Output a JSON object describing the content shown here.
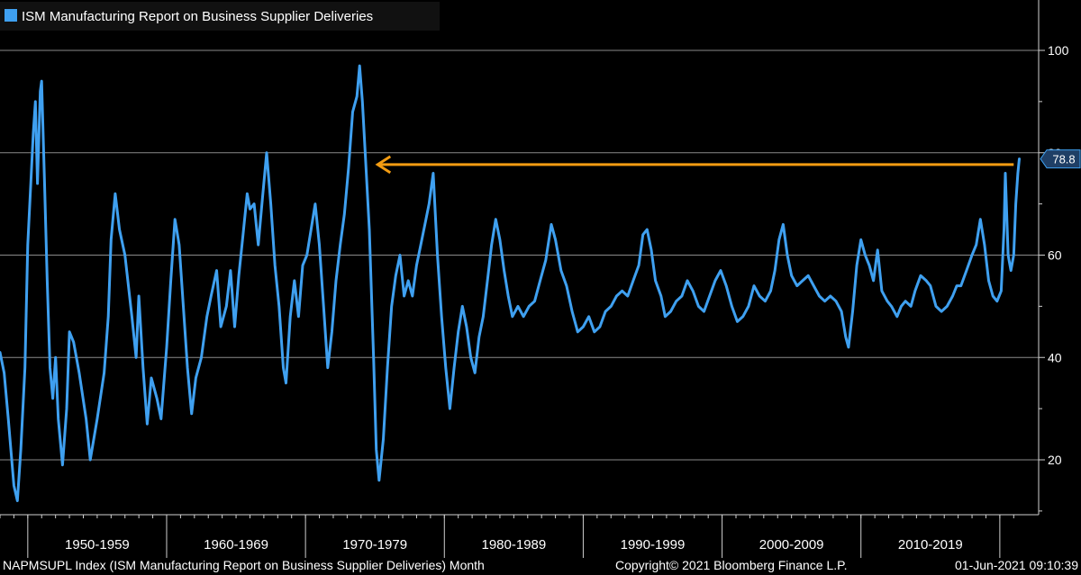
{
  "chart_data": {
    "type": "line",
    "title": "ISM Manufacturing Report on Business Supplier Deliveries",
    "legend": {
      "placement": "top-left",
      "entries": [
        "ISM Manufacturing Report on Business Supplier Deliveries"
      ]
    },
    "grid": true,
    "y_axis": {
      "position": "right",
      "ylim": [
        10,
        110
      ],
      "ticks": [
        20,
        40,
        60,
        80,
        100
      ],
      "tick_labels": [
        "20",
        "40",
        "60",
        "80",
        "100"
      ]
    },
    "x_axis": {
      "xlim": [
        1948.0,
        2021.5
      ],
      "groups": [
        "1950-1959",
        "1960-1969",
        "1970-1979",
        "1980-1989",
        "1990-1999",
        "2000-2009",
        "2010-2019"
      ]
    },
    "current_value": {
      "label": "78.8",
      "x": 2021.35,
      "y": 78.8
    },
    "annotation": {
      "type": "arrow",
      "from": [
        2021.0,
        77.7
      ],
      "to": [
        1975.2,
        77.7
      ],
      "color": "#f39c12"
    },
    "series": [
      {
        "name": "ISM Manufacturing Report on Business Supplier Deliveries",
        "color": "#3fa0f0",
        "points": [
          [
            1948.0,
            41
          ],
          [
            1948.3,
            37
          ],
          [
            1948.6,
            28
          ],
          [
            1949.0,
            15
          ],
          [
            1949.25,
            12
          ],
          [
            1949.5,
            22
          ],
          [
            1949.8,
            38
          ],
          [
            1950.0,
            62
          ],
          [
            1950.2,
            73
          ],
          [
            1950.4,
            84
          ],
          [
            1950.55,
            90
          ],
          [
            1950.7,
            74
          ],
          [
            1950.9,
            92
          ],
          [
            1951.0,
            94
          ],
          [
            1951.2,
            75
          ],
          [
            1951.4,
            55
          ],
          [
            1951.6,
            38
          ],
          [
            1951.8,
            32
          ],
          [
            1952.0,
            40
          ],
          [
            1952.2,
            28
          ],
          [
            1952.5,
            19
          ],
          [
            1952.8,
            30
          ],
          [
            1953.0,
            45
          ],
          [
            1953.3,
            43
          ],
          [
            1953.7,
            37
          ],
          [
            1954.2,
            28
          ],
          [
            1954.5,
            20
          ],
          [
            1955.0,
            28
          ],
          [
            1955.5,
            37
          ],
          [
            1955.8,
            48
          ],
          [
            1956.0,
            63
          ],
          [
            1956.3,
            72
          ],
          [
            1956.6,
            65
          ],
          [
            1957.0,
            60
          ],
          [
            1957.5,
            48
          ],
          [
            1957.8,
            40
          ],
          [
            1958.0,
            52
          ],
          [
            1958.3,
            38
          ],
          [
            1958.6,
            27
          ],
          [
            1958.9,
            36
          ],
          [
            1959.3,
            32
          ],
          [
            1959.6,
            28
          ],
          [
            1960.0,
            42
          ],
          [
            1960.3,
            55
          ],
          [
            1960.6,
            67
          ],
          [
            1960.9,
            62
          ],
          [
            1961.2,
            50
          ],
          [
            1961.5,
            38
          ],
          [
            1961.8,
            29
          ],
          [
            1962.1,
            36
          ],
          [
            1962.5,
            40
          ],
          [
            1962.9,
            48
          ],
          [
            1963.2,
            52
          ],
          [
            1963.6,
            57
          ],
          [
            1963.9,
            46
          ],
          [
            1964.3,
            50
          ],
          [
            1964.6,
            57
          ],
          [
            1964.9,
            46
          ],
          [
            1965.2,
            56
          ],
          [
            1965.5,
            64
          ],
          [
            1965.8,
            72
          ],
          [
            1966.0,
            69
          ],
          [
            1966.3,
            70
          ],
          [
            1966.6,
            62
          ],
          [
            1966.9,
            71
          ],
          [
            1967.2,
            80
          ],
          [
            1967.5,
            70
          ],
          [
            1967.8,
            58
          ],
          [
            1968.1,
            50
          ],
          [
            1968.4,
            38
          ],
          [
            1968.6,
            35
          ],
          [
            1968.9,
            48
          ],
          [
            1969.2,
            55
          ],
          [
            1969.5,
            48
          ],
          [
            1969.8,
            58
          ],
          [
            1970.1,
            60
          ],
          [
            1970.4,
            65
          ],
          [
            1970.7,
            70
          ],
          [
            1971.0,
            62
          ],
          [
            1971.3,
            50
          ],
          [
            1971.6,
            38
          ],
          [
            1971.9,
            45
          ],
          [
            1972.2,
            55
          ],
          [
            1972.5,
            62
          ],
          [
            1972.8,
            68
          ],
          [
            1973.1,
            77
          ],
          [
            1973.4,
            88
          ],
          [
            1973.7,
            91
          ],
          [
            1973.9,
            97
          ],
          [
            1974.1,
            90
          ],
          [
            1974.3,
            80
          ],
          [
            1974.6,
            65
          ],
          [
            1974.9,
            40
          ],
          [
            1975.1,
            22
          ],
          [
            1975.3,
            16
          ],
          [
            1975.6,
            24
          ],
          [
            1975.9,
            38
          ],
          [
            1976.2,
            50
          ],
          [
            1976.5,
            56
          ],
          [
            1976.8,
            60
          ],
          [
            1977.1,
            52
          ],
          [
            1977.4,
            55
          ],
          [
            1977.7,
            52
          ],
          [
            1978.0,
            58
          ],
          [
            1978.3,
            62
          ],
          [
            1978.6,
            66
          ],
          [
            1978.9,
            70
          ],
          [
            1979.2,
            76
          ],
          [
            1979.5,
            60
          ],
          [
            1979.8,
            48
          ],
          [
            1980.1,
            38
          ],
          [
            1980.4,
            30
          ],
          [
            1980.7,
            38
          ],
          [
            1981.0,
            45
          ],
          [
            1981.3,
            50
          ],
          [
            1981.6,
            46
          ],
          [
            1981.9,
            40
          ],
          [
            1982.2,
            37
          ],
          [
            1982.5,
            44
          ],
          [
            1982.8,
            48
          ],
          [
            1983.1,
            55
          ],
          [
            1983.4,
            62
          ],
          [
            1983.7,
            67
          ],
          [
            1984.0,
            63
          ],
          [
            1984.3,
            57
          ],
          [
            1984.6,
            52
          ],
          [
            1984.9,
            48
          ],
          [
            1985.3,
            50
          ],
          [
            1985.7,
            48
          ],
          [
            1986.1,
            50
          ],
          [
            1986.5,
            51
          ],
          [
            1986.9,
            55
          ],
          [
            1987.3,
            59
          ],
          [
            1987.7,
            66
          ],
          [
            1988.0,
            63
          ],
          [
            1988.4,
            57
          ],
          [
            1988.8,
            54
          ],
          [
            1989.2,
            49
          ],
          [
            1989.6,
            45
          ],
          [
            1990.0,
            46
          ],
          [
            1990.4,
            48
          ],
          [
            1990.8,
            45
          ],
          [
            1991.2,
            46
          ],
          [
            1991.6,
            49
          ],
          [
            1992.0,
            50
          ],
          [
            1992.4,
            52
          ],
          [
            1992.8,
            53
          ],
          [
            1993.2,
            52
          ],
          [
            1993.6,
            55
          ],
          [
            1994.0,
            58
          ],
          [
            1994.3,
            64
          ],
          [
            1994.6,
            65
          ],
          [
            1994.9,
            61
          ],
          [
            1995.2,
            55
          ],
          [
            1995.6,
            52
          ],
          [
            1995.9,
            48
          ],
          [
            1996.3,
            49
          ],
          [
            1996.7,
            51
          ],
          [
            1997.1,
            52
          ],
          [
            1997.5,
            55
          ],
          [
            1997.9,
            53
          ],
          [
            1998.3,
            50
          ],
          [
            1998.7,
            49
          ],
          [
            1999.1,
            52
          ],
          [
            1999.5,
            55
          ],
          [
            1999.9,
            57
          ],
          [
            2000.3,
            54
          ],
          [
            2000.7,
            50
          ],
          [
            2001.1,
            47
          ],
          [
            2001.5,
            48
          ],
          [
            2001.9,
            50
          ],
          [
            2002.3,
            54
          ],
          [
            2002.7,
            52
          ],
          [
            2003.1,
            51
          ],
          [
            2003.5,
            53
          ],
          [
            2003.8,
            57
          ],
          [
            2004.1,
            63
          ],
          [
            2004.4,
            66
          ],
          [
            2004.7,
            60
          ],
          [
            2005.0,
            56
          ],
          [
            2005.4,
            54
          ],
          [
            2005.8,
            55
          ],
          [
            2006.2,
            56
          ],
          [
            2006.6,
            54
          ],
          [
            2007.0,
            52
          ],
          [
            2007.4,
            51
          ],
          [
            2007.8,
            52
          ],
          [
            2008.2,
            51
          ],
          [
            2008.6,
            49
          ],
          [
            2008.9,
            44
          ],
          [
            2009.1,
            42
          ],
          [
            2009.4,
            49
          ],
          [
            2009.7,
            58
          ],
          [
            2010.0,
            63
          ],
          [
            2010.3,
            60
          ],
          [
            2010.6,
            58
          ],
          [
            2010.9,
            55
          ],
          [
            2011.2,
            61
          ],
          [
            2011.5,
            53
          ],
          [
            2011.9,
            51
          ],
          [
            2012.2,
            50
          ],
          [
            2012.6,
            48
          ],
          [
            2012.9,
            50
          ],
          [
            2013.2,
            51
          ],
          [
            2013.6,
            50
          ],
          [
            2013.9,
            53
          ],
          [
            2014.3,
            56
          ],
          [
            2014.7,
            55
          ],
          [
            2015.0,
            54
          ],
          [
            2015.4,
            50
          ],
          [
            2015.8,
            49
          ],
          [
            2016.2,
            50
          ],
          [
            2016.6,
            52
          ],
          [
            2016.9,
            54
          ],
          [
            2017.2,
            54
          ],
          [
            2017.6,
            57
          ],
          [
            2018.0,
            60
          ],
          [
            2018.3,
            62
          ],
          [
            2018.6,
            67
          ],
          [
            2018.9,
            62
          ],
          [
            2019.2,
            55
          ],
          [
            2019.5,
            52
          ],
          [
            2019.8,
            51
          ],
          [
            2020.1,
            53
          ],
          [
            2020.3,
            65
          ],
          [
            2020.4,
            76
          ],
          [
            2020.6,
            60
          ],
          [
            2020.8,
            57
          ],
          [
            2021.0,
            60
          ],
          [
            2021.15,
            70
          ],
          [
            2021.3,
            76
          ],
          [
            2021.4,
            78.8
          ]
        ]
      }
    ]
  },
  "footer": {
    "left": "NAPMSUPL Index (ISM Manufacturing Report on Business Supplier Deliveries)  Month",
    "center": "Copyright© 2021 Bloomberg Finance L.P.",
    "right": "01-Jun-2021 09:10:39"
  }
}
